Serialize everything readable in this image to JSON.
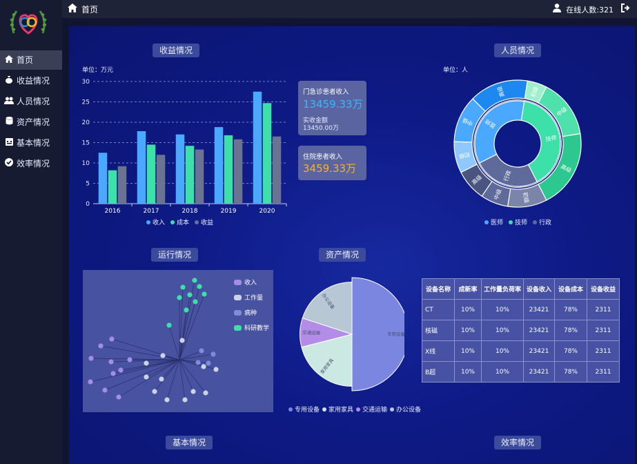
{
  "sidebar": {
    "items": [
      {
        "label": "首页",
        "icon": "home-icon",
        "active": true
      },
      {
        "label": "收益情况",
        "icon": "money-bag-icon"
      },
      {
        "label": "人员情况",
        "icon": "users-icon"
      },
      {
        "label": "资产情况",
        "icon": "database-icon"
      },
      {
        "label": "基本情况",
        "icon": "calendar-icon"
      },
      {
        "label": "效率情况",
        "icon": "check-circle-icon"
      }
    ]
  },
  "header": {
    "breadcrumb": "首页",
    "online": "在线人数:321"
  },
  "panels": {
    "revenue": "收益情况",
    "staff": "人员情况",
    "operation": "运行情况",
    "assets": "资产情况",
    "basic": "基本情况",
    "efficiency": "效率情况"
  },
  "revenue_cards": {
    "outpatient_label": "门急诊患者收入",
    "outpatient_value": "13459.33万",
    "paid_label": "实收金额",
    "paid_value": "13450.00万",
    "inpatient_label": "住院患者收入",
    "inpatient_value": "3459.33万"
  },
  "colors": {
    "income": "#4aa8ff",
    "cost": "#3ce0a8",
    "profit": "#6c7390"
  },
  "chart_data": [
    {
      "type": "bar",
      "unit": "单位：万元",
      "categories": [
        "2016",
        "2017",
        "2018",
        "2019",
        "2020"
      ],
      "series": [
        {
          "name": "收入",
          "values": [
            12.5,
            17.8,
            17,
            18.8,
            27.5
          ]
        },
        {
          "name": "成本",
          "values": [
            8.2,
            14.5,
            14.2,
            16.8,
            24.7
          ]
        },
        {
          "name": "收益",
          "values": [
            9.2,
            12,
            13.3,
            15.8,
            16.5
          ]
        }
      ],
      "ylim": [
        0,
        30
      ],
      "yticks": [
        0,
        5,
        10,
        15,
        20,
        25,
        30
      ]
    },
    {
      "type": "pie",
      "unit": "单位：人",
      "legend": [
        "医师",
        "技师",
        "行政"
      ],
      "inner": [
        {
          "label": "医师",
          "value": 35,
          "group": 0
        },
        {
          "label": "技师",
          "value": 40,
          "group": 1
        },
        {
          "label": "行政",
          "value": 25,
          "group": 2
        }
      ],
      "outer": [
        {
          "label": "初级",
          "value": 8,
          "group": 0
        },
        {
          "label": "中级",
          "value": 12,
          "group": 0
        },
        {
          "label": "高级",
          "value": 15,
          "group": 0
        },
        {
          "label": "初级",
          "value": 5,
          "group": 1
        },
        {
          "label": "中级",
          "value": 15,
          "group": 1
        },
        {
          "label": "高级",
          "value": 20,
          "group": 1
        },
        {
          "label": "初级",
          "value": 10,
          "group": 2
        },
        {
          "label": "中级",
          "value": 7,
          "group": 2
        },
        {
          "label": "高级",
          "value": 8,
          "group": 2
        }
      ]
    },
    {
      "type": "pie",
      "legend": [
        "专用设备",
        "家用家具",
        "交通运输",
        "办公设备"
      ],
      "slices": [
        {
          "label": "专用设备",
          "value": 50
        },
        {
          "label": "家用家具",
          "value": 21
        },
        {
          "label": "交通运输",
          "value": 9
        },
        {
          "label": "办公设备",
          "value": 20
        }
      ]
    },
    {
      "type": "scatter",
      "legend": [
        "收入",
        "工作量",
        "病种",
        "科研教学"
      ]
    }
  ],
  "asset_table": {
    "headers": [
      "设备名称",
      "成新率",
      "工作量负荷率",
      "设备收入",
      "设备成本",
      "设备收益"
    ],
    "rows": [
      [
        "CT",
        "10%",
        "10%",
        "23421",
        "78%",
        "2311"
      ],
      [
        "核磁",
        "10%",
        "10%",
        "23421",
        "78%",
        "2311"
      ],
      [
        "X线",
        "10%",
        "10%",
        "23421",
        "78%",
        "2311"
      ],
      [
        "B超",
        "10%",
        "10%",
        "23421",
        "78%",
        "2311"
      ]
    ]
  }
}
